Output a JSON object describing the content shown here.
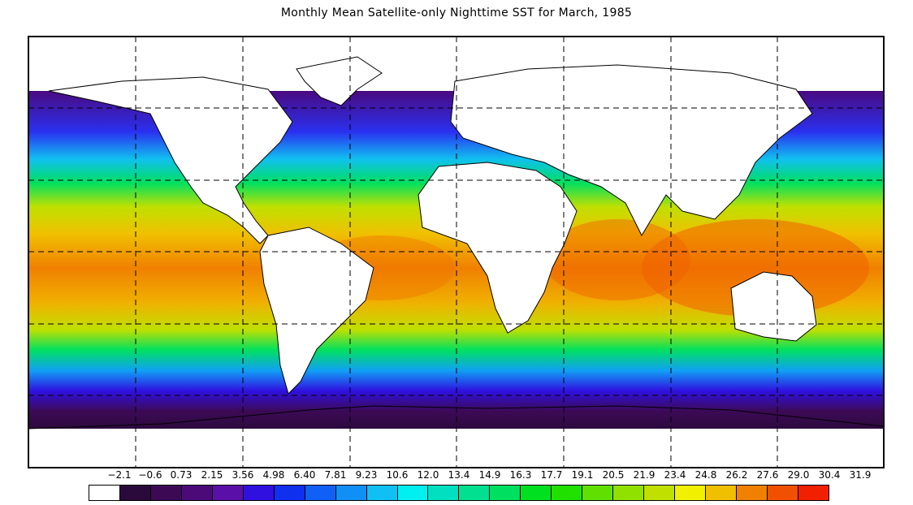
{
  "title": "Monthly Mean Satellite-only Nighttime SST for March, 1985",
  "legend": {
    "labels": [
      "−2.1",
      "−0.6",
      "0.73",
      "2.15",
      "3.56",
      "4.98",
      "6.40",
      "7.81",
      "9.23",
      "10.6",
      "12.0",
      "13.4",
      "14.9",
      "16.3",
      "17.7",
      "19.1",
      "20.5",
      "21.9",
      "23.4",
      "24.8",
      "26.2",
      "27.6",
      "29.0",
      "30.4",
      "31.9"
    ],
    "colors": [
      "#ffffff",
      "#2a0a3a",
      "#3c0a55",
      "#4b0a78",
      "#5a10a8",
      "#3010e0",
      "#1030f0",
      "#1060f5",
      "#1090f5",
      "#10c0f5",
      "#00f0f0",
      "#00e0c0",
      "#00e090",
      "#00e060",
      "#00e020",
      "#20e000",
      "#60e000",
      "#90e000",
      "#c0e000",
      "#f0f000",
      "#f0c000",
      "#f08000",
      "#f05000",
      "#f02000"
    ]
  },
  "map": {
    "projection": "cylindrical equidistant",
    "graticule": "dashed",
    "land_color": "#ffffff",
    "coastline_color": "#000000"
  }
}
